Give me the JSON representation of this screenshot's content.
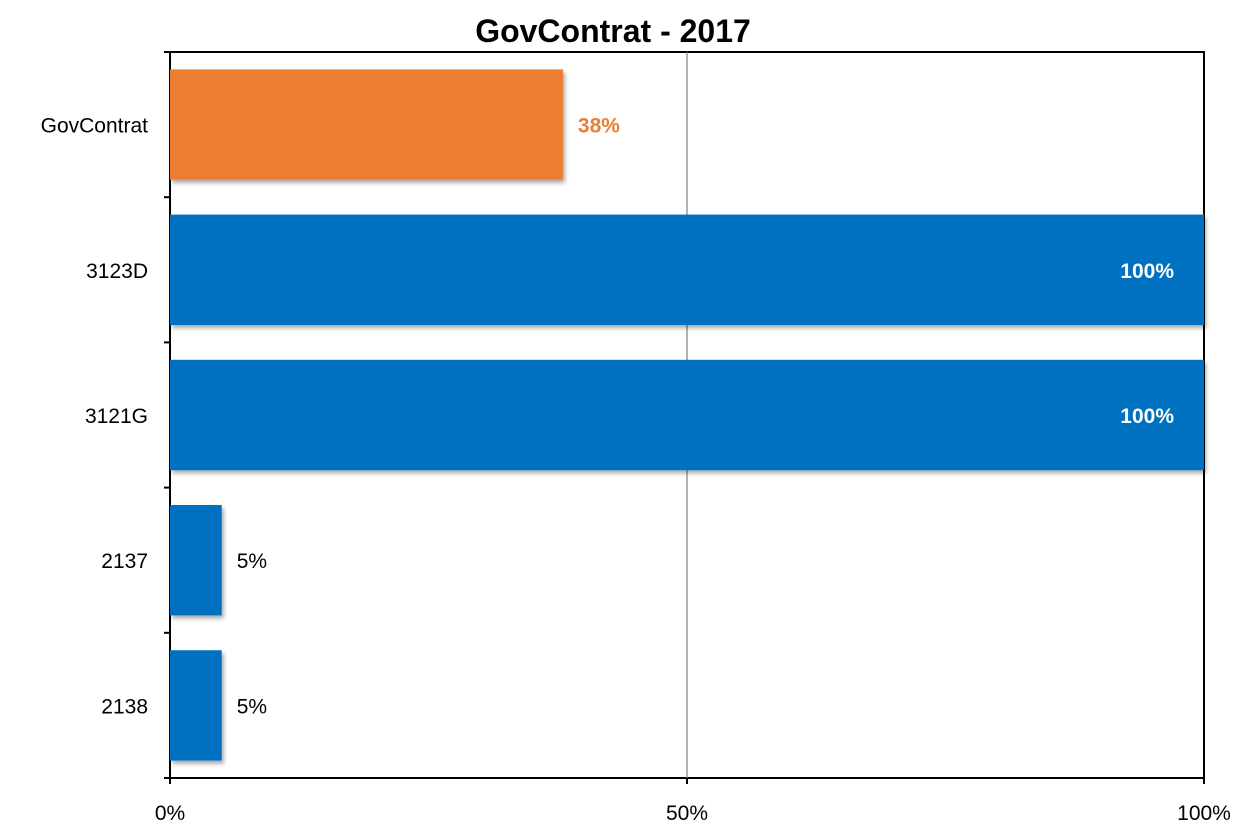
{
  "chart_data": {
    "type": "bar",
    "orientation": "horizontal",
    "title": "GovContrat - 2017",
    "xlabel": "",
    "ylabel": "",
    "xlim": [
      0,
      100
    ],
    "grid": true,
    "legend": "none",
    "x_ticks": [
      "0%",
      "50%",
      "100%"
    ],
    "categories": [
      "GovContrat",
      "3123D",
      "3121G",
      "2137",
      "2138"
    ],
    "values": [
      38,
      100,
      100,
      5,
      5
    ],
    "labels": [
      "38%",
      "100%",
      "100%",
      "5%",
      "5%"
    ],
    "bar_colors": [
      "#ED7D31",
      "#0070C0",
      "#0070C0",
      "#0070C0",
      "#0070C0"
    ],
    "label_colors": [
      "#ED7D31",
      "#FFFFFF",
      "#FFFFFF",
      "#000000",
      "#000000"
    ],
    "label_bold": [
      true,
      true,
      true,
      false,
      false
    ]
  }
}
